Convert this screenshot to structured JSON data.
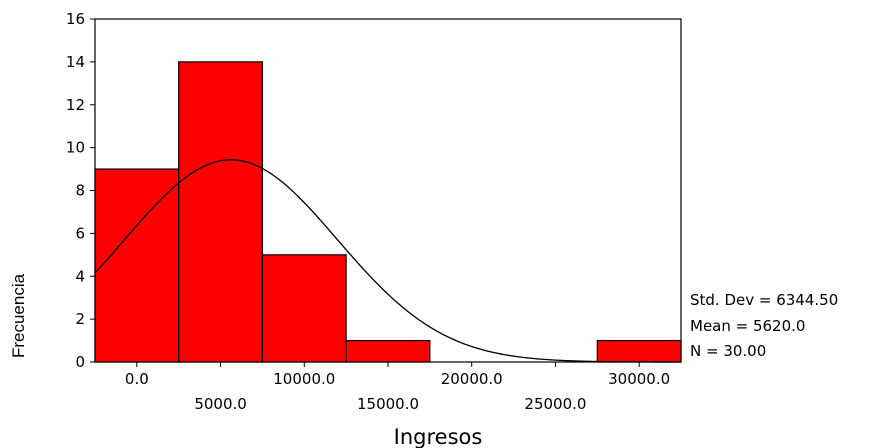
{
  "chart_data": {
    "type": "bar",
    "title": "",
    "xlabel": "Ingresos",
    "ylabel": "Frecuencia",
    "ylim": [
      0,
      16
    ],
    "yticks": [
      "0",
      "2",
      "4",
      "6",
      "8",
      "10",
      "12",
      "14",
      "16"
    ],
    "xlim": [
      -2500,
      32500
    ],
    "bin_width": 5000,
    "xtick_labels_upper": [
      "0.0",
      "10000.0",
      "20000.0",
      "30000.0"
    ],
    "xtick_labels_lower": [
      "5000.0",
      "15000.0",
      "25000.0"
    ],
    "bins": [
      {
        "center": 0,
        "value": 9
      },
      {
        "center": 5000,
        "value": 14
      },
      {
        "center": 10000,
        "value": 5
      },
      {
        "center": 15000,
        "value": 1
      },
      {
        "center": 20000,
        "value": 0
      },
      {
        "center": 25000,
        "value": 0
      },
      {
        "center": 30000,
        "value": 1
      }
    ],
    "normal_curve": {
      "mean": 5620.0,
      "std_dev": 6344.5,
      "n": 30,
      "bin_width": 5000
    },
    "bar_color": "#ff0000",
    "grid": false,
    "stats": {
      "std_dev": "Std. Dev = 6344.50",
      "mean": "Mean = 5620.0",
      "n": "N = 30.00"
    }
  }
}
